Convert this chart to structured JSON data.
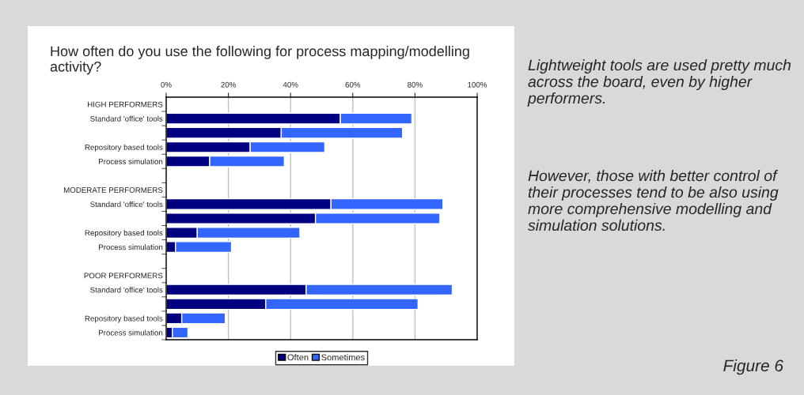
{
  "chart_data": {
    "type": "bar",
    "orientation": "horizontal",
    "stacked": true,
    "title": "How often do you use the following for process mapping/modelling activity?",
    "categories": [
      "HIGH PERFORMERS",
      "Standard 'office' tools",
      null,
      "Repository based tools",
      "Process simulation",
      null,
      "MODERATE PERFORMERS",
      "Standard 'office' tools",
      null,
      "Repository based tools",
      "Process simulation",
      null,
      "POOR PERFORMERS",
      "Standard 'office' tools",
      null,
      "Repository based tools",
      "Process simulation"
    ],
    "series": [
      {
        "name": "Often",
        "color": "#000080",
        "values": [
          null,
          56,
          37,
          27,
          14,
          null,
          null,
          53,
          48,
          10,
          3,
          null,
          null,
          45,
          32,
          5,
          2
        ]
      },
      {
        "name": "Sometimes",
        "color": "#3366ff",
        "values": [
          null,
          23,
          39,
          24,
          24,
          null,
          null,
          36,
          40,
          33,
          18,
          null,
          null,
          47,
          49,
          14,
          5
        ]
      }
    ],
    "xlim": [
      0,
      100
    ],
    "xticks": [
      {
        "value": 0,
        "label": "0%"
      },
      {
        "value": 20,
        "label": "20%"
      },
      {
        "value": 40,
        "label": "40%"
      },
      {
        "value": 60,
        "label": "60%"
      },
      {
        "value": 80,
        "label": "80%"
      },
      {
        "value": 100,
        "label": "100%"
      }
    ],
    "grid": "x",
    "legend": "bottom",
    "annotations": [
      "Lightweight tools are used pretty much across the board, even by higher performers.",
      "However, those with better control of their processes tend to be also using more comprehensive modelling and simulation solutions.",
      "Figure 6"
    ]
  }
}
